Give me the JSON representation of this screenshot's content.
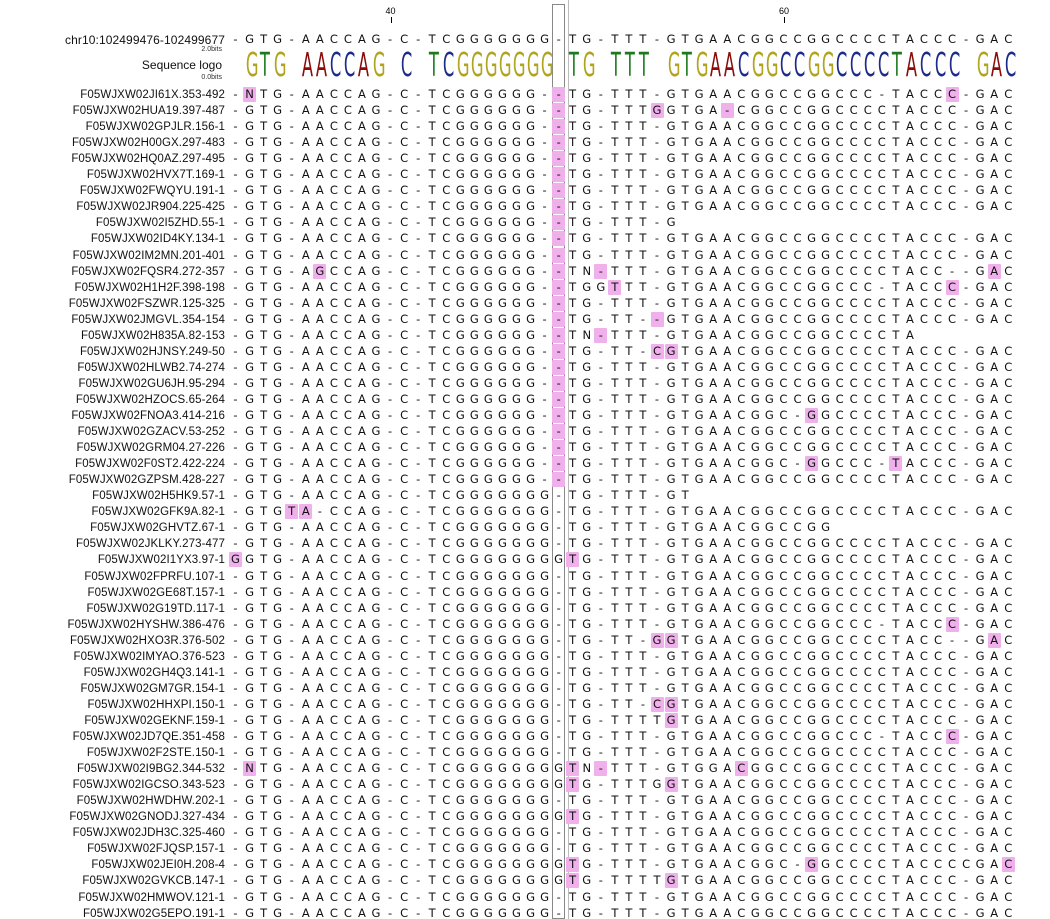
{
  "ruler": {
    "ticks": [
      {
        "label": "40",
        "col": 11
      },
      {
        "label": "60",
        "col": 39
      }
    ]
  },
  "reference": {
    "name": "chr10:102499476-102499677",
    "seq": "-GTG-AACCAG-C-TCGGGGGGG-TG-TTT-GTGAACGGCCGGCCCCTACCC-GAC"
  },
  "logo": {
    "label": "Sequence logo",
    "top_bits": "2.0bits",
    "bottom_bits": "0.0bits",
    "letters": "-GTG-AACCAG-C-TCGGGGGGG-TG-TTT-GTGAACGGCCGGCCCCTACCC-GAC",
    "colors": {
      "A": "#8b0a0a",
      "C": "#1c2a8a",
      "G": "#b0a41c",
      "T": "#1c7a1c"
    }
  },
  "selected_column": 23,
  "reads": [
    {
      "name": "F05WJXW02JI61X.353-492",
      "seq": "-NTG-AACCAG-C-TCGGGGGG--TG-TTT-GTGAACGGCCGGCCC-TACCC-GAC",
      "diffs": [
        1,
        23,
        51
      ]
    },
    {
      "name": "F05WJXW02HUA19.397-487",
      "seq": "-GTG-AACCAG-C-TCGGGGGG--TG-TTTGGTGA-CGGCCGGCCCCTACCC-GAC",
      "diffs": [
        23,
        30,
        35
      ]
    },
    {
      "name": "F05WJXW02GPJLR.156-1",
      "seq": "-GTG-AACCAG-C-TCGGGGGG--TG-TTT-GTGAACGGCCGGCCCCTACCC-GAC",
      "diffs": [
        23
      ]
    },
    {
      "name": "F05WJXW02H00GX.297-483",
      "seq": "-GTG-AACCAG-C-TCGGGGGG--TG-TTT-GTGAACGGCCGGCCCCTACCC-GAC",
      "diffs": [
        23
      ]
    },
    {
      "name": "F05WJXW02HQ0AZ.297-495",
      "seq": "-GTG-AACCAG-C-TCGGGGGG--TG-TTT-GTGAACGGCCGGCCCCTACCC-GAC",
      "diffs": [
        23
      ]
    },
    {
      "name": "F05WJXW02HVX7T.169-1",
      "seq": "-GTG-AACCAG-C-TCGGGGGG--TG-TTT-GTGAACGGCCGGCCCCTACCC-GAC",
      "diffs": [
        23
      ]
    },
    {
      "name": "F05WJXW02FWQYU.191-1",
      "seq": "-GTG-AACCAG-C-TCGGGGGG--TG-TTT-GTGAACGGCCGGCCCCTACCC-GAC",
      "diffs": [
        23
      ]
    },
    {
      "name": "F05WJXW02JR904.225-425",
      "seq": "-GTG-AACCAG-C-TCGGGGGG--TG-TTT-GTGAACGGCCGGCCCCTACCC-GAC",
      "diffs": [
        23
      ]
    },
    {
      "name": "F05WJXW02I5ZHD.55-1",
      "seq": "-GTG-AACCAG-C-TCGGGGGG--TG-TTT-G",
      "diffs": [
        23
      ]
    },
    {
      "name": "F05WJXW02ID4KY.134-1",
      "seq": "-GTG-AACCAG-C-TCGGGGGG--TG-TTT-GTGAACGGCCGGCCCCTACCC-GAC",
      "diffs": [
        23
      ]
    },
    {
      "name": "F05WJXW02IM2MN.201-401",
      "seq": "-GTG-AACCAG-C-TCGGGGGG--TG-TTT-GTGAACGGCCGGCCCCTACCC-GAC",
      "diffs": [
        23
      ]
    },
    {
      "name": "F05WJXW02FQSR4.272-357",
      "seq": "-GTG-AGCCAG-C-TCGGGGGG--TN-TTT-GTGAACGGCCGGCCCCTACC--GAC",
      "diffs": [
        6,
        23,
        26,
        54
      ]
    },
    {
      "name": "F05WJXW02H1H2F.398-198",
      "seq": "-GTG-AACCAG-C-TCGGGGGG--TGGTTT-GTGAACGGCCGGCCC-TACCC-GAC",
      "diffs": [
        23,
        27,
        51
      ]
    },
    {
      "name": "F05WJXW02FSZWR.125-325",
      "seq": "-GTG-AACCAG-C-TCGGGGGG--TG-TTT-GTGAACGGCCGGCCCCTACCC-GAC",
      "diffs": [
        23
      ]
    },
    {
      "name": "F05WJXW02JMGVL.354-154",
      "seq": "-GTG-AACCAG-C-TCGGGGGG--TG-TT--GTGAACGGCCGGCCCCTACCC-GAC",
      "diffs": [
        23,
        30
      ]
    },
    {
      "name": "F05WJXW02H835A.82-153",
      "seq": "-GTG-AACCAG-C-TCGGGGGG--TN-TTT-GTGAACGGCCGGCCCCTA",
      "diffs": [
        23,
        26
      ]
    },
    {
      "name": "F05WJXW02HJNSY.249-50",
      "seq": "-GTG-AACCAG-C-TCGGGGGG--TG-TT-CGTGAACGGCCGGCCCCTACCC-GAC",
      "diffs": [
        23,
        30,
        31
      ]
    },
    {
      "name": "F05WJXW02HLWB2.74-274",
      "seq": "-GTG-AACCAG-C-TCGGGGGG--TG-TTT-GTGAACGGCCGGCCCCTACCC-GAC",
      "diffs": [
        23
      ]
    },
    {
      "name": "F05WJXW02GU6JH.95-294",
      "seq": "-GTG-AACCAG-C-TCGGGGGG--TG-TTT-GTGAACGGCCGGCCCCTACCC-GAC",
      "diffs": [
        23
      ]
    },
    {
      "name": "F05WJXW02HZOCS.65-264",
      "seq": "-GTG-AACCAG-C-TCGGGGGG--TG-TTT-GTGAACGGCCGGCCCCTACCC-GAC",
      "diffs": [
        23
      ]
    },
    {
      "name": "F05WJXW02FNOA3.414-216",
      "seq": "-GTG-AACCAG-C-TCGGGGGG--TG-TTT-GTGAACGGC-GGCCCCTACCC-GAC",
      "diffs": [
        23,
        41
      ]
    },
    {
      "name": "F05WJXW02GZACV.53-252",
      "seq": "-GTG-AACCAG-C-TCGGGGGG--TG-TTT-GTGAACGGCCGGCCCCTACCC-GAC",
      "diffs": [
        23
      ]
    },
    {
      "name": "F05WJXW02GRM04.27-226",
      "seq": "-GTG-AACCAG-C-TCGGGGGG--TG-TTT-GTGAACGGCCGGCCCCTACCC-GAC",
      "diffs": [
        23
      ]
    },
    {
      "name": "F05WJXW02F0ST2.422-224",
      "seq": "-GTG-AACCAG-C-TCGGGGGG--TG-TTT-GTGAACGGC-GGCCC-TACCC-GAC",
      "diffs": [
        23,
        41,
        47
      ]
    },
    {
      "name": "F05WJXW02GZPSM.428-227",
      "seq": "-GTG-AACCAG-C-TCGGGGGG--TG-TTT-GTGAACGGCCGGCCCCTACCC-GAC",
      "diffs": [
        23
      ]
    },
    {
      "name": "F05WJXW02H5HK9.57-1",
      "seq": "-GTG-AACCAG-C-TCGGGGGGG-TG-TTT-GT",
      "diffs": []
    },
    {
      "name": "F05WJXW02GFK9A.82-1",
      "seq": "-GTGTA-CCAG-C-TCGGGGGGG-TG-TTT-GTGAACGGCCGGCCCCTACCC-GAC",
      "diffs": [
        4,
        5
      ]
    },
    {
      "name": "F05WJXW02GHVTZ.67-1",
      "seq": "-GTG-AACCAG-C-TCGGGGGGG-TG-TTT-GTGAACGGCCGG",
      "diffs": []
    },
    {
      "name": "F05WJXW02JKLKY.273-477",
      "seq": "-GTG-AACCAG-C-TCGGGGGGG-TG-TTT-GTGAACGGCCGGCCCCTACCC-GAC",
      "diffs": []
    },
    {
      "name": "F05WJXW02I1YX3.97-1",
      "seq": "GGTG-AACCAG-C-TCGGGGGGGGTG-TTT-GTGAACGGCCGGCCCCTACCC-GAC",
      "diffs": [
        0,
        24
      ]
    },
    {
      "name": "F05WJXW02FPRFU.107-1",
      "seq": "-GTG-AACCAG-C-TCGGGGGGG-TG-TTT-GTGAACGGCCGGCCCCTACCC-GAC",
      "diffs": []
    },
    {
      "name": "F05WJXW02GE68T.157-1",
      "seq": "-GTG-AACCAG-C-TCGGGGGGG-TG-TTT-GTGAACGGCCGGCCCCTACCC-GAC",
      "diffs": []
    },
    {
      "name": "F05WJXW02G19TD.117-1",
      "seq": "-GTG-AACCAG-C-TCGGGGGGG-TG-TTT-GTGAACGGCCGGCCCCTACCC-GAC",
      "diffs": []
    },
    {
      "name": "F05WJXW02HYSHW.386-476",
      "seq": "-GTG-AACCAG-C-TCGGGGGGG-TG-TTT-GTGAACGGCCGGCCC-TACCC-GAC",
      "diffs": [
        51
      ]
    },
    {
      "name": "F05WJXW02HXO3R.376-502",
      "seq": "-GTG-AACCAG-C-TCGGGGGGG-TG-TT-GGTGAACGGCCGGCCCCTACC--GAC",
      "diffs": [
        30,
        31,
        54
      ]
    },
    {
      "name": "F05WJXW02IMYAO.376-523",
      "seq": "-GTG-AACCAG-C-TCGGGGGGG-TG-TTT-GTGAACGGCCGGCCCCTACCC-GAC",
      "diffs": []
    },
    {
      "name": "F05WJXW02GH4Q3.141-1",
      "seq": "-GTG-AACCAG-C-TCGGGGGGG-TG-TTT-GTGAACGGCCGGCCCCTACCC-GAC",
      "diffs": []
    },
    {
      "name": "F05WJXW02GM7GR.154-1",
      "seq": "-GTG-AACCAG-C-TCGGGGGGG-TG-TTT-GTGAACGGCCGGCCCCTACCC-GAC",
      "diffs": []
    },
    {
      "name": "F05WJXW02HHXPI.150-1",
      "seq": "-GTG-AACCAG-C-TCGGGGGGG-TG-TT-CGTGAACGGCCGGCCCCTACCC-GAC",
      "diffs": [
        30,
        31
      ]
    },
    {
      "name": "F05WJXW02GEKNF.159-1",
      "seq": "-GTG-AACCAG-C-TCGGGGGGG-TG-TTTTGTGAACGGCCGGCCCCTACCC-GAC",
      "diffs": [
        31
      ]
    },
    {
      "name": "F05WJXW02JD7QE.351-458",
      "seq": "-GTG-AACCAG-C-TCGGGGGGG-TG-TTT-GTGAACGGCCGGCCC-TACCC-GAC",
      "diffs": [
        51
      ]
    },
    {
      "name": "F05WJXW02F2STE.150-1",
      "seq": "-GTG-AACCAG-C-TCGGGGGGG-TG-TTT-GTGAACGGCCGGCCCCTACCC-GAC",
      "diffs": []
    },
    {
      "name": "F05WJXW02I9BG2.344-532",
      "seq": "-NTG-AACCAG-C-TCGGGGGGGGTN-TTT-GTGGACGGCCGGCCCCTACCC-GAC",
      "diffs": [
        1,
        24,
        26,
        36
      ]
    },
    {
      "name": "F05WJXW02IGCSO.343-523",
      "seq": "-GTG-AACCAG-C-TCGGGGGGGGTG-TTTGGTGAACGGCCGGCCCCTACCC-GAC",
      "diffs": [
        24,
        31
      ]
    },
    {
      "name": "F05WJXW02HWDHW.202-1",
      "seq": "-GTG-AACCAG-C-TCGGGGGGG-TG-TTT-GTGAACGGCCGGCCCCTACCC-GAC",
      "diffs": []
    },
    {
      "name": "F05WJXW02GNODJ.327-434",
      "seq": "-GTG-AACCAG-C-TCGGGGGGGGTG-TTT-GTGAACGGCCGGCCCCTACCC-GAC",
      "diffs": [
        24
      ]
    },
    {
      "name": "F05WJXW02JDH3C.325-460",
      "seq": "-GTG-AACCAG-C-TCGGGGGGG-TG-TTT-GTGAACGGCCGGCCCCTACCC-GAC",
      "diffs": []
    },
    {
      "name": "F05WJXW02FJQSP.157-1",
      "seq": "-GTG-AACCAG-C-TCGGGGGGG-TG-TTT-GTGAACGGCCGGCCCCTACCC-GAC",
      "diffs": []
    },
    {
      "name": "F05WJXW02JEI0H.208-4",
      "seq": "-GTG-AACCAG-C-TCGGGGGGGGTG-TTT-GTGAACGGC-GGCCCCTACCCCGAC",
      "diffs": [
        24,
        41,
        55
      ]
    },
    {
      "name": "F05WJXW02GVKCB.147-1",
      "seq": "-GTG-AACCAG-C-TCGGGGGGGGTG-TTTTGTGAACGGCCGGCCCCTACCC-GAC",
      "diffs": [
        24,
        31
      ]
    },
    {
      "name": "F05WJXW02HMWOV.121-1",
      "seq": "-GTG-AACCAG-C-TCGGGGGGG-TG-TTT-GTGAACGGCCGGCCCCTACCC-GAC",
      "diffs": []
    },
    {
      "name": "F05WJXW02G5EPO.191-1",
      "seq": "-GTG-AACCAG-C-TCGGGGGGG-TG-TTT-GTGAACGGCCGGCCCCTACCC-GAC",
      "diffs": []
    }
  ]
}
